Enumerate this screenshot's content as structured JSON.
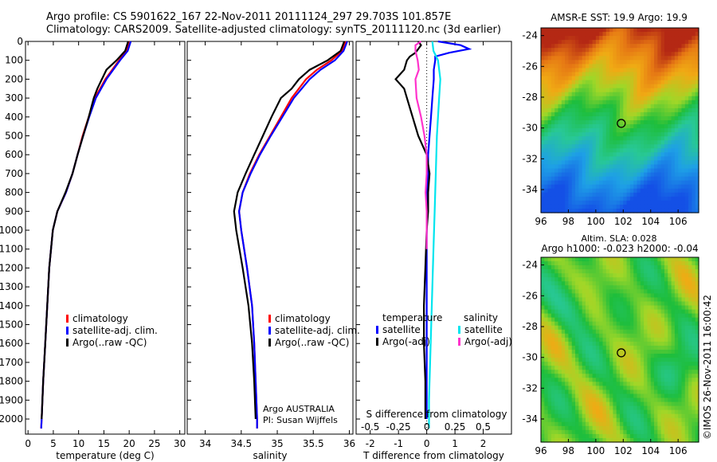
{
  "titles": {
    "line1": "Argo profile: CS 5901622_167 22-Nov-2011 20111124_297 29.703S 101.857E",
    "line2": "Climatology: CARS2009. Satellite-adjusted climatology: synTS_20111120.nc (3d earlier)"
  },
  "colors": {
    "climatology": "#ff0000",
    "satellite": "#0000ff",
    "argo": "#000000",
    "sat_salinity": "#00e5ee",
    "argo_salinity": "#ff33cc"
  },
  "chart_data": [
    {
      "type": "line",
      "panel": "temperature",
      "xlabel": "temperature (deg C)",
      "ylabel": "",
      "xlim": [
        -0.5,
        31
      ],
      "ylim": [
        2080,
        0
      ],
      "xticks": [
        0,
        5,
        10,
        15,
        20,
        25,
        30
      ],
      "yticks": [
        0,
        100,
        200,
        300,
        400,
        500,
        600,
        700,
        800,
        900,
        1000,
        1100,
        1200,
        1300,
        1400,
        1500,
        1600,
        1700,
        1800,
        1900,
        2000
      ],
      "legend": [
        "climatology",
        "satellite-adj. clim.",
        "Argo(..raw -QC)"
      ],
      "series": [
        {
          "name": "climatology",
          "depth": [
            0,
            50,
            100,
            200,
            300,
            400,
            500,
            600,
            700,
            800,
            900,
            1000,
            1200,
            1400,
            1600,
            1800,
            2000,
            2050
          ],
          "values": [
            20.0,
            19.5,
            18.0,
            15.3,
            13.2,
            12.0,
            10.8,
            9.8,
            8.8,
            7.5,
            5.8,
            4.9,
            4.2,
            3.8,
            3.4,
            3.0,
            2.7,
            2.6
          ]
        },
        {
          "name": "satellite-adj. clim.",
          "depth": [
            0,
            50,
            100,
            200,
            300,
            400,
            500,
            600,
            700,
            800,
            900,
            1000,
            1200,
            1400,
            1600,
            1800,
            2000,
            2050
          ],
          "values": [
            20.3,
            19.7,
            18.2,
            15.5,
            13.4,
            12.1,
            10.9,
            9.8,
            8.8,
            7.5,
            5.8,
            4.9,
            4.2,
            3.8,
            3.4,
            3.0,
            2.7,
            2.6
          ]
        },
        {
          "name": "Argo(..raw -QC)",
          "depth": [
            0,
            50,
            100,
            150,
            200,
            250,
            300,
            400,
            500,
            600,
            700,
            800,
            900,
            1000,
            1200,
            1400,
            1600,
            1800,
            2000
          ],
          "values": [
            19.8,
            19.2,
            17.5,
            15.5,
            14.6,
            13.7,
            13.0,
            12.0,
            10.9,
            9.8,
            8.8,
            7.4,
            5.8,
            4.9,
            4.2,
            3.8,
            3.4,
            3.0,
            2.7
          ]
        }
      ]
    },
    {
      "type": "line",
      "panel": "salinity",
      "xlabel": "salinity",
      "xlim": [
        33.75,
        36.05
      ],
      "ylim": [
        2080,
        0
      ],
      "xticks": [
        34,
        34.5,
        35,
        35.5,
        36
      ],
      "xtick_labels": [
        "34",
        "34.5",
        "35",
        "35.5",
        "36"
      ],
      "legend": [
        "climatology",
        "satellite-adj. clim.",
        "Argo(..raw -QC)"
      ],
      "annotations": [
        "Argo AUSTRALIA",
        "PI: Susan Wijffels"
      ],
      "series": [
        {
          "name": "climatology",
          "depth": [
            0,
            50,
            100,
            150,
            200,
            300,
            400,
            500,
            600,
            700,
            800,
            900,
            1000,
            1200,
            1400,
            1600,
            1800,
            2000,
            2050
          ],
          "values": [
            35.95,
            35.9,
            35.75,
            35.55,
            35.4,
            35.2,
            35.05,
            34.9,
            34.75,
            34.62,
            34.52,
            34.47,
            34.5,
            34.58,
            34.65,
            34.68,
            34.7,
            34.72,
            34.72
          ]
        },
        {
          "name": "satellite-adj. clim.",
          "depth": [
            0,
            50,
            100,
            150,
            200,
            300,
            400,
            500,
            600,
            700,
            800,
            900,
            1000,
            1200,
            1400,
            1600,
            1800,
            2000,
            2050
          ],
          "values": [
            35.97,
            35.92,
            35.8,
            35.6,
            35.45,
            35.23,
            35.07,
            34.91,
            34.76,
            34.63,
            34.52,
            34.47,
            34.5,
            34.58,
            34.65,
            34.68,
            34.7,
            34.72,
            34.72
          ]
        },
        {
          "name": "Argo(..raw -QC)",
          "depth": [
            0,
            50,
            100,
            150,
            200,
            250,
            300,
            400,
            500,
            600,
            700,
            800,
            900,
            1000,
            1200,
            1400,
            1600,
            1800,
            2000
          ],
          "values": [
            35.93,
            35.88,
            35.7,
            35.45,
            35.3,
            35.2,
            35.05,
            34.92,
            34.8,
            34.68,
            34.56,
            34.45,
            34.4,
            34.43,
            34.52,
            34.6,
            34.65,
            34.68,
            34.7
          ]
        }
      ]
    },
    {
      "type": "line",
      "panel": "difference",
      "xlabel": "T difference from climatology",
      "x2label": "S difference from climatology",
      "xlim": [
        -2.5,
        3
      ],
      "x2lim": [
        -0.625,
        0.75
      ],
      "ylim": [
        2080,
        0
      ],
      "xticks": [
        -2,
        -1,
        0,
        1,
        2
      ],
      "x2ticks": [
        -0.5,
        -0.25,
        0,
        0.25,
        0.5
      ],
      "x2tick_labels": [
        "-0.5",
        "-0.25",
        "0",
        "0.25",
        "0.5"
      ],
      "legend_temperature": {
        "title": "temperature",
        "items": [
          "satellite",
          "Argo(-adj)"
        ]
      },
      "legend_salinity": {
        "title": "salinity",
        "items": [
          "satellite",
          "Argo(-adj)"
        ]
      },
      "series": [
        {
          "name": "satellite",
          "group": "temperature",
          "depth": [
            0,
            20,
            40,
            60,
            80,
            100,
            150,
            200,
            300,
            400,
            500,
            600,
            700,
            800,
            1000,
            1200,
            1500,
            2000
          ],
          "values": [
            0.4,
            1.2,
            1.5,
            0.8,
            0.3,
            0.3,
            0.25,
            0.25,
            0.2,
            0.15,
            0.1,
            0.05,
            0.05,
            0,
            0,
            0,
            0,
            0
          ]
        },
        {
          "name": "Argo(-adj)",
          "group": "temperature",
          "depth": [
            0,
            20,
            40,
            60,
            80,
            100,
            150,
            200,
            250,
            300,
            400,
            500,
            600,
            700,
            800,
            900,
            1000,
            1200,
            1400,
            1600,
            1800,
            2000
          ],
          "values": [
            -0.3,
            -0.2,
            -0.3,
            -0.4,
            -0.6,
            -0.7,
            -0.8,
            -1.1,
            -0.8,
            -0.7,
            -0.5,
            -0.3,
            0,
            0.1,
            0.05,
            0.05,
            0,
            -0.05,
            -0.1,
            -0.1,
            -0.05,
            -0.05
          ]
        },
        {
          "name": "satellite",
          "group": "salinity",
          "depth": [
            0,
            50,
            100,
            200,
            300,
            400,
            500,
            700,
            900,
            1100,
            1300,
            1500,
            1700,
            1900,
            2050
          ],
          "values": [
            0.05,
            0.06,
            0.1,
            0.12,
            0.11,
            0.1,
            0.09,
            0.08,
            0.07,
            0.06,
            0.05,
            0.04,
            0.03,
            0.02,
            0.02
          ]
        },
        {
          "name": "Argo(-adj)",
          "group": "salinity",
          "depth": [
            0,
            20,
            50,
            100,
            150,
            200,
            300,
            400,
            500,
            600,
            700,
            800,
            900,
            1000,
            1100
          ],
          "values": [
            -0.05,
            -0.1,
            -0.1,
            -0.08,
            -0.07,
            -0.1,
            -0.09,
            -0.05,
            -0.02,
            0,
            0,
            -0.01,
            0,
            0,
            0
          ]
        }
      ]
    },
    {
      "type": "heatmap",
      "panel": "sst-map",
      "title": "AMSR-E SST: 19.9 Argo: 19.9",
      "xticks": [
        96,
        98,
        100,
        102,
        104,
        106
      ],
      "yticks": [
        -24,
        -26,
        -28,
        -30,
        -32,
        -34
      ],
      "xlim": [
        96,
        107.5
      ],
      "ylim": [
        -35.5,
        -23.5
      ],
      "marker": {
        "x": 101.857,
        "y": -29.703
      }
    },
    {
      "type": "heatmap",
      "panel": "sla-map",
      "title": "Altim. SLA: 0.028",
      "subtitle": "Argo h1000: -0.023 h2000: -0.04",
      "xticks": [
        96,
        98,
        100,
        102,
        104,
        106
      ],
      "yticks": [
        -24,
        -26,
        -28,
        -30,
        -32,
        -34
      ],
      "xlim": [
        96,
        107.5
      ],
      "ylim": [
        -35.5,
        -23.5
      ],
      "marker": {
        "x": 101.857,
        "y": -29.703
      }
    }
  ],
  "credit": "©IMOS 26-Nov-2011 16:00:42"
}
